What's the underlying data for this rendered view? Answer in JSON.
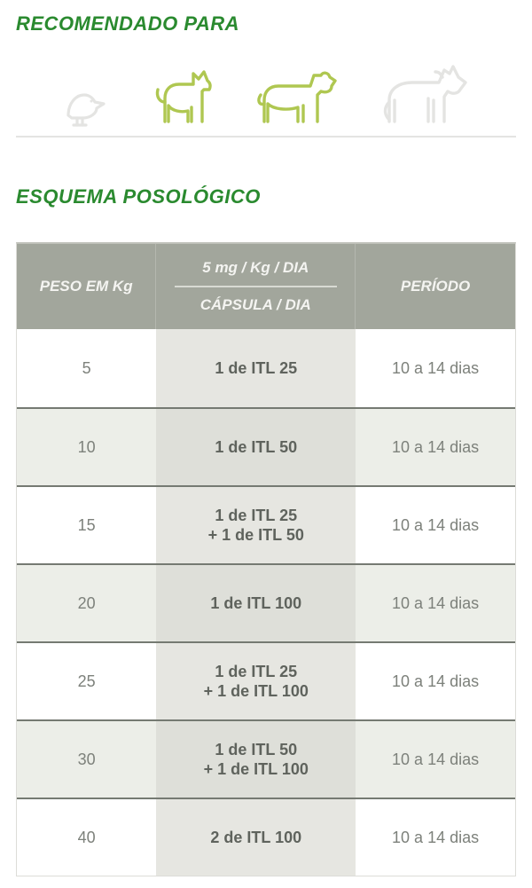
{
  "colors": {
    "title_green": "#2a8a2f",
    "icon_inactive": "#e4e4e2",
    "icon_active": "#afc751",
    "divider": "#e4e4e2",
    "header_bg": "#a2a69c",
    "header_text": "#f4f4f1",
    "row_border": "#757a72",
    "dose_bg": "#e6e6e1",
    "alt_bg": "#eceee8",
    "alt_dose_bg": "#dedfd9",
    "cell_text": "#7d817b",
    "dose_text": "#5f635d"
  },
  "section1": {
    "title": "RECOMENDADO PARA"
  },
  "animals": [
    {
      "name": "bird",
      "active": false
    },
    {
      "name": "cat",
      "active": true
    },
    {
      "name": "dog",
      "active": true
    },
    {
      "name": "horse",
      "active": false
    }
  ],
  "section2": {
    "title": "ESQUEMA POSOLÓGICO"
  },
  "table": {
    "header": {
      "weight": "PESO EM Kg",
      "dose_top": "5 mg / Kg / DIA",
      "dose_bottom": "CÁPSULA / DIA",
      "period": "PERÍODO"
    },
    "rows": [
      {
        "weight": "5",
        "dose": [
          "1 de ITL 25"
        ],
        "period": "10 a 14 dias",
        "alt": false
      },
      {
        "weight": "10",
        "dose": [
          "1 de ITL 50"
        ],
        "period": "10 a 14 dias",
        "alt": true
      },
      {
        "weight": "15",
        "dose": [
          "1 de ITL 25",
          "+ 1 de ITL 50"
        ],
        "period": "10 a 14 dias",
        "alt": false
      },
      {
        "weight": "20",
        "dose": [
          "1 de ITL 100"
        ],
        "period": "10 a 14 dias",
        "alt": true
      },
      {
        "weight": "25",
        "dose": [
          "1 de ITL 25",
          "+ 1 de ITL 100"
        ],
        "period": "10 a 14 dias",
        "alt": false
      },
      {
        "weight": "30",
        "dose": [
          "1  de ITL 50",
          "+ 1 de ITL 100"
        ],
        "period": "10 a 14 dias",
        "alt": true
      },
      {
        "weight": "40",
        "dose": [
          "2 de ITL 100"
        ],
        "period": "10 a 14 dias",
        "alt": false
      }
    ],
    "fontsize_header": 17,
    "fontsize_cells": 18
  }
}
